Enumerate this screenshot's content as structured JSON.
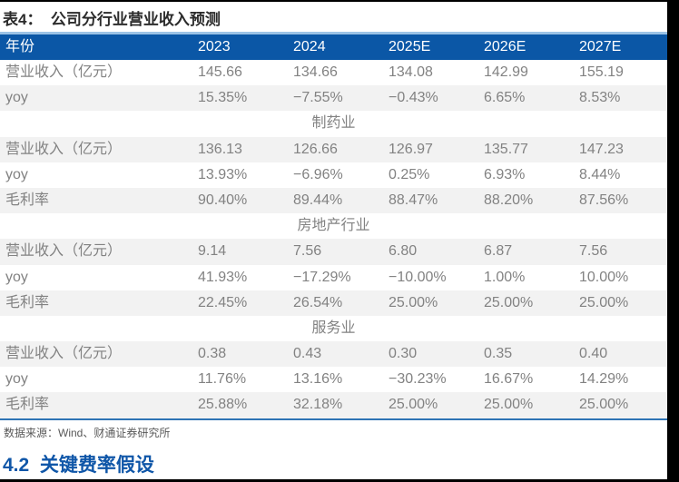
{
  "title": "表4：  公司分行业营业收入预测",
  "table": {
    "header": [
      "年份",
      "2023",
      "2024",
      "2025E",
      "2026E",
      "2027E"
    ],
    "rows": [
      {
        "type": "data",
        "cells": [
          "营业收入（亿元）",
          "145.66",
          "134.66",
          "134.08",
          "142.99",
          "155.19"
        ]
      },
      {
        "type": "data",
        "cells": [
          "yoy",
          "15.35%",
          "−7.55%",
          "−0.43%",
          "6.65%",
          "8.53%"
        ]
      },
      {
        "type": "section",
        "label": "制药业"
      },
      {
        "type": "data",
        "cells": [
          "营业收入（亿元）",
          "136.13",
          "126.66",
          "126.97",
          "135.77",
          "147.23"
        ]
      },
      {
        "type": "data",
        "cells": [
          "yoy",
          "13.93%",
          "−6.96%",
          "0.25%",
          "6.93%",
          "8.44%"
        ]
      },
      {
        "type": "data",
        "cells": [
          "毛利率",
          "90.40%",
          "89.44%",
          "88.47%",
          "88.20%",
          "87.56%"
        ]
      },
      {
        "type": "section",
        "label": "房地产行业"
      },
      {
        "type": "data",
        "cells": [
          "营业收入（亿元）",
          "9.14",
          "7.56",
          "6.80",
          "6.87",
          "7.56"
        ]
      },
      {
        "type": "data",
        "cells": [
          "yoy",
          "41.93%",
          "−17.29%",
          "−10.00%",
          "1.00%",
          "10.00%"
        ]
      },
      {
        "type": "data",
        "cells": [
          "毛利率",
          "22.45%",
          "26.54%",
          "25.00%",
          "25.00%",
          "25.00%"
        ]
      },
      {
        "type": "section",
        "label": "服务业"
      },
      {
        "type": "data",
        "cells": [
          "营业收入（亿元）",
          "0.38",
          "0.43",
          "0.30",
          "0.35",
          "0.40"
        ]
      },
      {
        "type": "data",
        "cells": [
          "yoy",
          "11.76%",
          "13.16%",
          "−30.23%",
          "16.67%",
          "14.29%"
        ]
      },
      {
        "type": "data",
        "cells": [
          "毛利率",
          "25.88%",
          "32.18%",
          "25.00%",
          "25.00%",
          "25.00%"
        ]
      }
    ]
  },
  "source": "数据来源：Wind、财通证券研究所",
  "next_section_heading": "4.2  关键费率假设",
  "colors": {
    "header_bg": "#0B57A6",
    "header_text": "#FFFFFF",
    "top_rule": "#9CC3E6",
    "bottom_rule": "#2E74B5",
    "zebra_row": "#F2F2F2",
    "data_text": "#828282",
    "title_text": "#2B2B2B",
    "heading_text": "#0F56A8",
    "frame": "#000000"
  }
}
